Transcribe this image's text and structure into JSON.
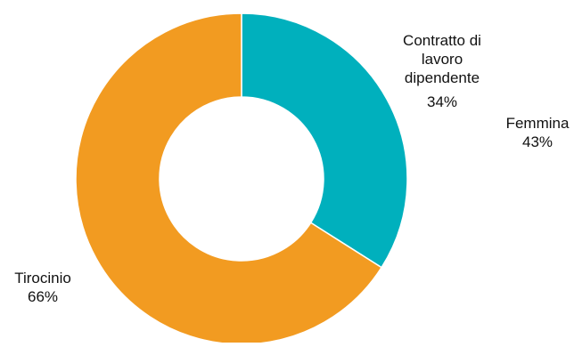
{
  "chart_data": {
    "type": "pie",
    "style": "donut",
    "slices": [
      {
        "label_lines": [
          "Contratto di",
          "lavoro",
          "dipendente"
        ],
        "value_label": "34%",
        "value": 34,
        "color": "#00b0bd"
      },
      {
        "label_lines": [
          "Tirocinio"
        ],
        "value_label": "66%",
        "value": 66,
        "color": "#f29b21"
      }
    ],
    "annotations": [
      {
        "label_lines": [
          "Femmina"
        ],
        "value_label": "43%",
        "value": 43
      }
    ],
    "start_angle_deg": 0,
    "direction": "clockwise"
  }
}
